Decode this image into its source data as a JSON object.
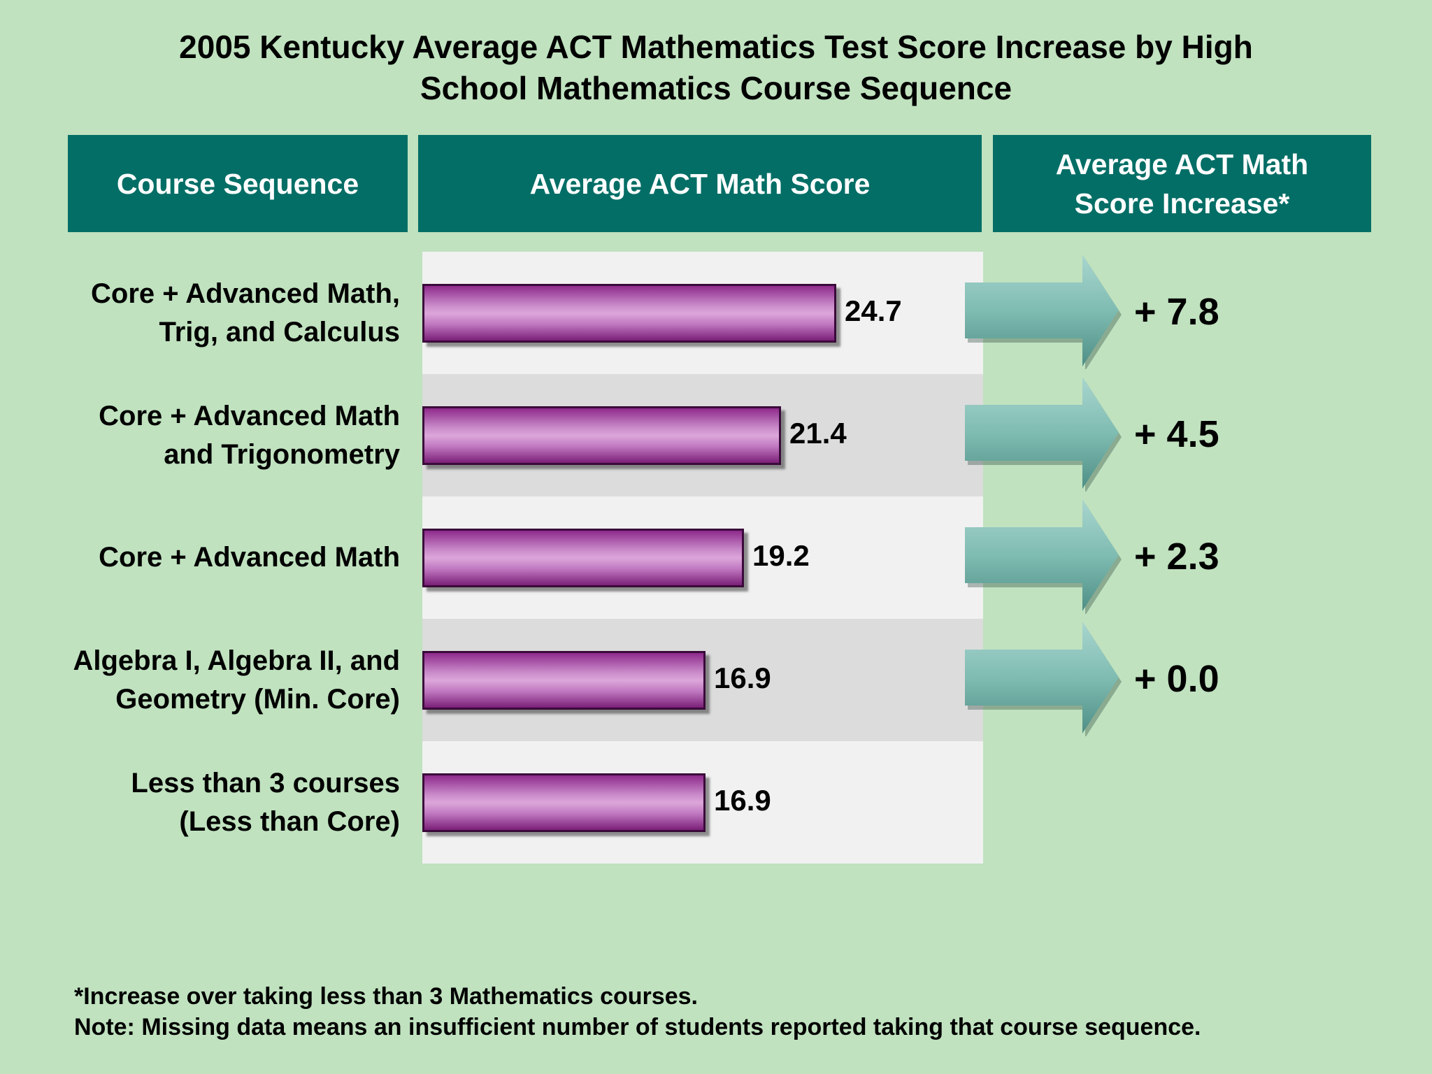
{
  "title_line1": "2005 Kentucky Average ACT Mathematics Test Score Increase by High",
  "title_line2": "School Mathematics Course Sequence",
  "headers": {
    "course": "Course Sequence",
    "score": "Average ACT Math Score",
    "increase_line1": "Average ACT Math",
    "increase_line2": "Score Increase*"
  },
  "footnote1": "*Increase over taking less than 3 Mathematics courses.",
  "footnote2": "Note: Missing data means an insufficient number of students reported taking that course sequence.",
  "colors": {
    "background": "#c0e2bf",
    "header": "#036e66",
    "bar": "#c98ac9",
    "arrow": "#7fbcb2"
  },
  "chart_data": {
    "type": "bar",
    "orientation": "horizontal",
    "title": "2005 Kentucky Average ACT Mathematics Test Score Increase by High School Mathematics Course Sequence",
    "categories": [
      [
        "Core + Advanced Math,",
        "Trig, and Calculus"
      ],
      [
        "Core + Advanced Math",
        "and Trigonometry"
      ],
      [
        "Core + Advanced Math"
      ],
      [
        "Algebra I, Algebra II, and",
        "Geometry (Min. Core)"
      ],
      [
        "Less than 3 courses",
        "(Less than Core)"
      ]
    ],
    "values": [
      24.7,
      21.4,
      19.2,
      16.9,
      16.9
    ],
    "value_labels": [
      "24.7",
      "21.4",
      "19.2",
      "16.9",
      "16.9"
    ],
    "increases": [
      "+ 7.8",
      "+ 4.5",
      "+ 2.3",
      "+ 0.0",
      null
    ],
    "increase_values": [
      7.8,
      4.5,
      2.3,
      0.0,
      null
    ]
  }
}
